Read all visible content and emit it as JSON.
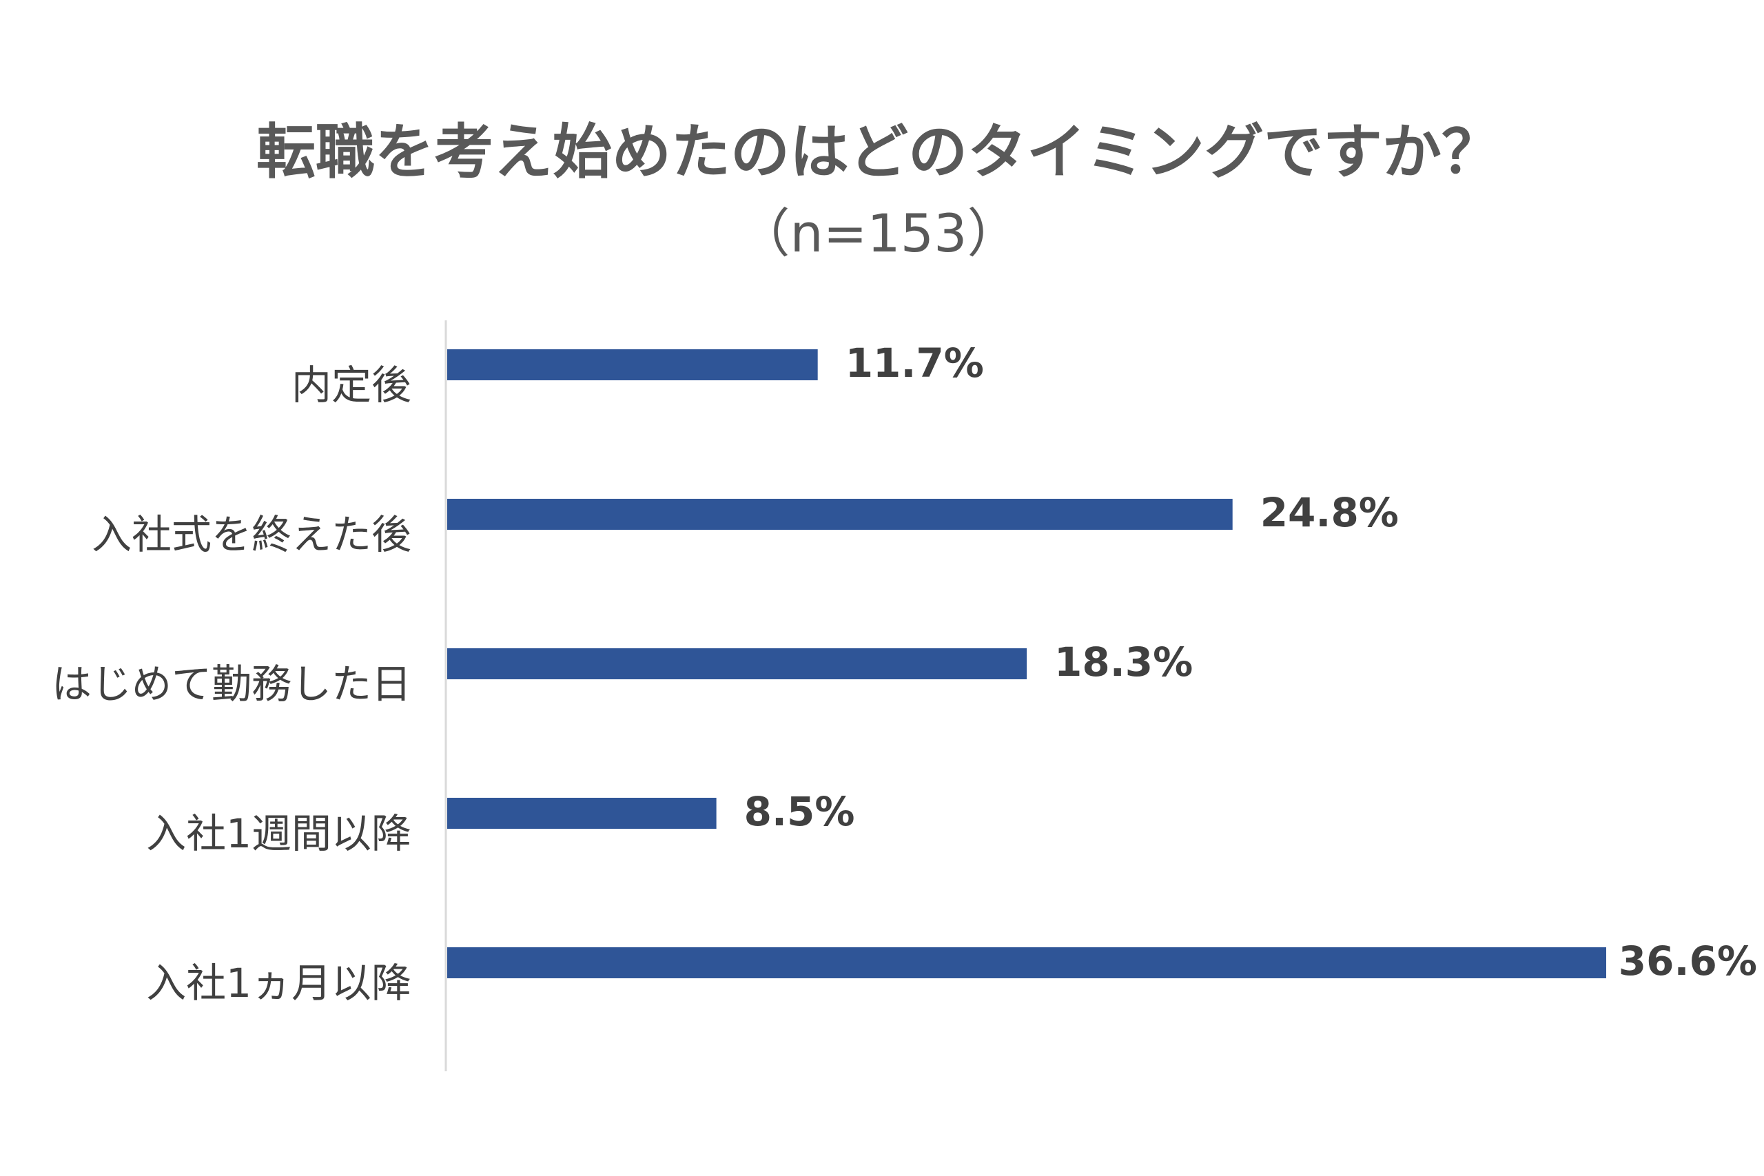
{
  "colors": {
    "bar": "#2f5597",
    "axis": "#d9d9d9",
    "title": "#595959",
    "label": "#404040"
  },
  "chart_data": {
    "type": "bar",
    "orientation": "horizontal",
    "title": "転職を考え始めたのはどのタイミングですか？",
    "subtitle": "（n=153）",
    "categories": [
      "内定後",
      "入社式を終えた後",
      "はじめて勤務した日",
      "入社1週間以降",
      "入社1ヵ月以降"
    ],
    "values": [
      11.7,
      24.8,
      18.3,
      8.5,
      36.6
    ],
    "value_labels": [
      "11.7%",
      "24.8%",
      "18.3%",
      "8.5%",
      "36.6%"
    ],
    "unit": "%",
    "xlim": [
      0,
      36.6
    ],
    "grid": false,
    "legend": "none"
  }
}
